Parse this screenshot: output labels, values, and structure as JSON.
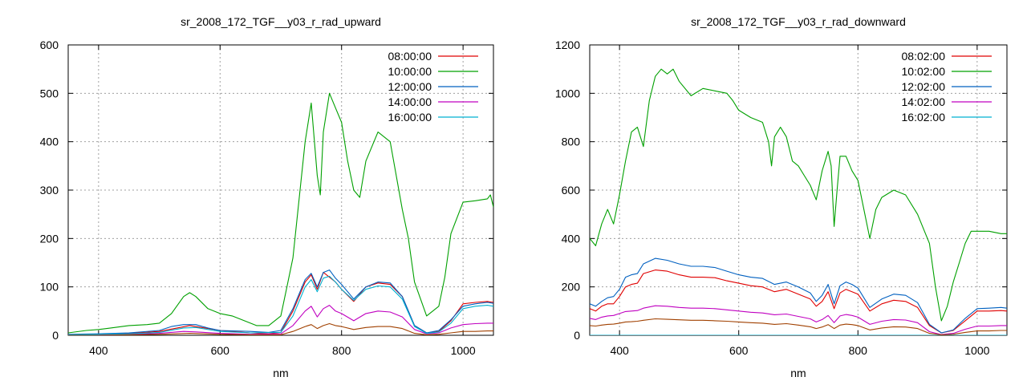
{
  "chart_data": [
    {
      "type": "line",
      "title": "sr_2008_172_TGF__y03_r_rad_upward",
      "xlabel": "nm",
      "ylabel": "",
      "xlim": [
        350,
        1050
      ],
      "ylim": [
        0,
        600
      ],
      "xticks": [
        400,
        600,
        800,
        1000
      ],
      "yticks": [
        0,
        100,
        200,
        300,
        400,
        500,
        600
      ],
      "grid": true,
      "legend": "top-right",
      "series": [
        {
          "name": "08:00:00",
          "color": "#e00000",
          "x": [
            350,
            400,
            450,
            500,
            550,
            600,
            650,
            680,
            700,
            720,
            740,
            750,
            760,
            770,
            780,
            790,
            800,
            820,
            840,
            860,
            880,
            900,
            920,
            940,
            960,
            980,
            1000,
            1020,
            1040,
            1050
          ],
          "y": [
            1,
            2,
            4,
            8,
            20,
            10,
            5,
            3,
            6,
            50,
            110,
            125,
            95,
            130,
            120,
            110,
            95,
            70,
            100,
            108,
            105,
            80,
            20,
            5,
            8,
            30,
            65,
            68,
            70,
            68
          ]
        },
        {
          "name": "10:00:00",
          "color": "#00a000",
          "x": [
            350,
            380,
            400,
            420,
            450,
            480,
            500,
            520,
            540,
            550,
            560,
            580,
            600,
            620,
            640,
            660,
            680,
            700,
            710,
            720,
            740,
            750,
            760,
            765,
            770,
            780,
            790,
            800,
            810,
            820,
            830,
            840,
            860,
            880,
            900,
            910,
            920,
            940,
            960,
            970,
            980,
            1000,
            1020,
            1040,
            1045,
            1050
          ],
          "y": [
            5,
            10,
            12,
            15,
            20,
            22,
            25,
            45,
            80,
            88,
            80,
            55,
            45,
            40,
            30,
            20,
            20,
            40,
            100,
            160,
            400,
            480,
            330,
            290,
            420,
            500,
            470,
            440,
            360,
            300,
            285,
            360,
            420,
            400,
            260,
            200,
            110,
            40,
            60,
            120,
            210,
            275,
            278,
            282,
            290,
            265
          ]
        },
        {
          "name": "12:00:00",
          "color": "#0060c0",
          "x": [
            350,
            400,
            450,
            500,
            520,
            540,
            560,
            580,
            600,
            650,
            680,
            700,
            720,
            740,
            750,
            760,
            770,
            780,
            790,
            800,
            820,
            840,
            860,
            880,
            900,
            920,
            940,
            960,
            980,
            1000,
            1020,
            1040,
            1050
          ],
          "y": [
            2,
            3,
            5,
            10,
            18,
            22,
            22,
            15,
            10,
            8,
            6,
            10,
            55,
            115,
            128,
            100,
            130,
            135,
            118,
            105,
            75,
            100,
            110,
            108,
            80,
            20,
            5,
            10,
            32,
            60,
            65,
            68,
            66
          ]
        },
        {
          "name": "14:00:00",
          "color": "#c000c0",
          "x": [
            350,
            400,
            450,
            500,
            540,
            560,
            600,
            650,
            700,
            720,
            740,
            750,
            760,
            770,
            780,
            790,
            800,
            820,
            840,
            860,
            880,
            900,
            920,
            940,
            960,
            980,
            1000,
            1020,
            1040,
            1050
          ],
          "y": [
            0,
            1,
            2,
            4,
            8,
            7,
            4,
            2,
            3,
            20,
            50,
            60,
            38,
            55,
            62,
            50,
            45,
            30,
            45,
            50,
            48,
            38,
            12,
            3,
            5,
            15,
            22,
            24,
            25,
            25
          ]
        },
        {
          "name": "16:00:00",
          "color": "#00b0d0",
          "x": [
            350,
            400,
            450,
            500,
            540,
            560,
            600,
            650,
            700,
            720,
            740,
            750,
            760,
            770,
            780,
            790,
            800,
            820,
            840,
            860,
            880,
            900,
            920,
            940,
            960,
            980,
            1000,
            1020,
            1040,
            1050
          ],
          "y": [
            1,
            2,
            3,
            6,
            15,
            16,
            8,
            5,
            6,
            40,
            100,
            115,
            90,
            118,
            122,
            110,
            95,
            72,
            95,
            102,
            100,
            75,
            18,
            4,
            7,
            25,
            55,
            60,
            62,
            60
          ]
        },
        {
          "name": "",
          "color": "#a04000",
          "x": [
            350,
            400,
            450,
            500,
            550,
            600,
            650,
            700,
            720,
            740,
            750,
            760,
            770,
            780,
            790,
            800,
            820,
            840,
            860,
            880,
            900,
            920,
            940,
            960,
            980,
            1000,
            1020,
            1040,
            1050
          ],
          "y": [
            0,
            0,
            1,
            2,
            4,
            2,
            1,
            1,
            8,
            18,
            22,
            14,
            20,
            24,
            20,
            18,
            12,
            16,
            18,
            18,
            14,
            4,
            1,
            2,
            5,
            8,
            8,
            9,
            9
          ]
        }
      ]
    },
    {
      "type": "line",
      "title": "sr_2008_172_TGF__y03_r_rad_downward",
      "xlabel": "nm",
      "ylabel": "",
      "xlim": [
        350,
        1050
      ],
      "ylim": [
        0,
        1200
      ],
      "xticks": [
        400,
        600,
        800,
        1000
      ],
      "yticks": [
        0,
        200,
        400,
        600,
        800,
        1000,
        1200
      ],
      "grid": true,
      "legend": "top-right",
      "series": [
        {
          "name": "08:02:00",
          "color": "#e00000",
          "x": [
            350,
            360,
            370,
            380,
            390,
            400,
            410,
            420,
            430,
            440,
            460,
            480,
            500,
            520,
            540,
            560,
            580,
            600,
            620,
            640,
            660,
            680,
            700,
            720,
            730,
            740,
            750,
            760,
            770,
            780,
            790,
            800,
            820,
            840,
            860,
            880,
            900,
            920,
            940,
            960,
            980,
            1000,
            1020,
            1040,
            1050
          ],
          "y": [
            110,
            100,
            120,
            130,
            130,
            160,
            200,
            210,
            215,
            255,
            270,
            265,
            250,
            240,
            240,
            238,
            225,
            215,
            205,
            200,
            180,
            190,
            170,
            150,
            120,
            140,
            180,
            110,
            175,
            190,
            180,
            170,
            100,
            130,
            145,
            140,
            115,
            40,
            10,
            20,
            60,
            100,
            100,
            102,
            100
          ]
        },
        {
          "name": "10:02:00",
          "color": "#00a000",
          "x": [
            350,
            360,
            370,
            380,
            390,
            400,
            410,
            420,
            430,
            440,
            450,
            460,
            470,
            480,
            490,
            500,
            520,
            540,
            560,
            580,
            590,
            600,
            620,
            640,
            650,
            655,
            660,
            670,
            680,
            690,
            700,
            710,
            720,
            730,
            740,
            750,
            755,
            760,
            765,
            770,
            780,
            790,
            800,
            810,
            820,
            830,
            840,
            860,
            880,
            900,
            920,
            930,
            940,
            950,
            960,
            970,
            980,
            990,
            1000,
            1020,
            1040,
            1050
          ],
          "y": [
            400,
            370,
            460,
            520,
            460,
            580,
            720,
            840,
            860,
            780,
            970,
            1070,
            1100,
            1080,
            1100,
            1050,
            990,
            1020,
            1010,
            1000,
            970,
            930,
            900,
            880,
            800,
            700,
            820,
            860,
            820,
            720,
            700,
            660,
            620,
            560,
            680,
            760,
            700,
            450,
            600,
            740,
            740,
            680,
            640,
            520,
            400,
            520,
            570,
            600,
            580,
            500,
            380,
            200,
            60,
            120,
            220,
            300,
            380,
            430,
            430,
            430,
            420,
            420
          ]
        },
        {
          "name": "12:02:00",
          "color": "#0060c0",
          "x": [
            350,
            360,
            370,
            380,
            390,
            400,
            410,
            420,
            430,
            440,
            460,
            480,
            500,
            520,
            540,
            560,
            580,
            600,
            620,
            640,
            660,
            680,
            700,
            720,
            730,
            740,
            750,
            760,
            770,
            780,
            790,
            800,
            820,
            840,
            860,
            880,
            900,
            920,
            940,
            960,
            980,
            1000,
            1020,
            1040,
            1050
          ],
          "y": [
            130,
            120,
            140,
            155,
            160,
            190,
            240,
            250,
            255,
            295,
            318,
            310,
            295,
            285,
            285,
            280,
            265,
            250,
            240,
            235,
            210,
            220,
            200,
            175,
            140,
            165,
            210,
            130,
            205,
            220,
            210,
            195,
            115,
            150,
            170,
            165,
            135,
            45,
            10,
            22,
            70,
            110,
            112,
            115,
            112
          ]
        },
        {
          "name": "14:02:00",
          "color": "#c000c0",
          "x": [
            350,
            360,
            370,
            380,
            390,
            400,
            410,
            420,
            430,
            440,
            460,
            480,
            500,
            520,
            540,
            560,
            580,
            600,
            620,
            640,
            660,
            680,
            700,
            720,
            730,
            740,
            750,
            760,
            770,
            780,
            790,
            800,
            820,
            840,
            860,
            880,
            900,
            920,
            940,
            960,
            980,
            1000,
            1020,
            1040,
            1050
          ],
          "y": [
            70,
            65,
            75,
            80,
            82,
            90,
            98,
            100,
            102,
            112,
            122,
            120,
            115,
            112,
            112,
            110,
            105,
            100,
            95,
            92,
            85,
            88,
            78,
            68,
            55,
            65,
            82,
            52,
            80,
            86,
            82,
            75,
            45,
            58,
            65,
            63,
            52,
            15,
            3,
            8,
            25,
            38,
            38,
            40,
            40
          ]
        },
        {
          "name": "16:02:00",
          "color": "#00b0d0",
          "x": [
            350,
            400,
            450,
            500,
            550,
            600,
            650,
            700,
            750,
            800,
            850,
            900,
            950,
            1000,
            1050
          ],
          "y": [
            0,
            0,
            0,
            0,
            0,
            0,
            0,
            0,
            0,
            0,
            0,
            0,
            0,
            0,
            0
          ]
        },
        {
          "name": "",
          "color": "#a04000",
          "x": [
            350,
            360,
            370,
            380,
            390,
            400,
            410,
            420,
            430,
            440,
            460,
            480,
            500,
            520,
            540,
            560,
            580,
            600,
            620,
            640,
            660,
            680,
            700,
            720,
            730,
            740,
            750,
            760,
            770,
            780,
            790,
            800,
            820,
            840,
            860,
            880,
            900,
            920,
            940,
            960,
            980,
            1000,
            1020,
            1040,
            1050
          ],
          "y": [
            40,
            38,
            42,
            45,
            46,
            50,
            55,
            56,
            58,
            62,
            68,
            66,
            64,
            62,
            62,
            60,
            58,
            55,
            52,
            50,
            45,
            48,
            42,
            35,
            28,
            34,
            44,
            28,
            42,
            46,
            44,
            40,
            22,
            30,
            35,
            34,
            28,
            8,
            2,
            4,
            12,
            18,
            18,
            20,
            20
          ]
        }
      ]
    }
  ]
}
